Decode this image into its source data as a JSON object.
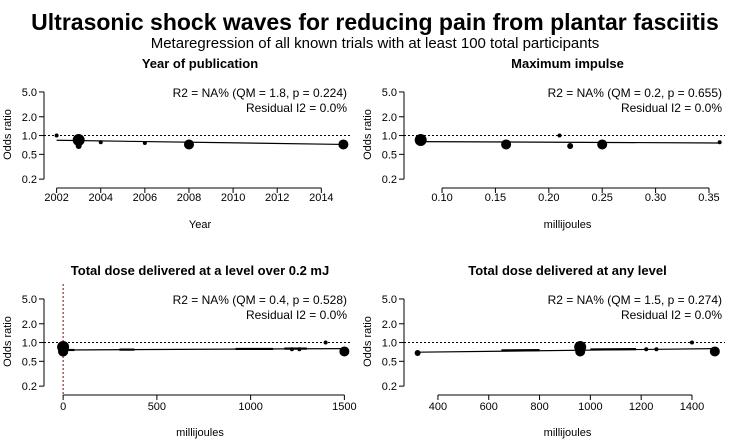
{
  "figure": {
    "title": "Ultrasonic shock waves for reducing pain from plantar fasciitis",
    "subtitle": "Metaregression of all known trials with at least 100 total participants"
  },
  "chart_data": [
    {
      "type": "scatter",
      "title": "Year of publication",
      "xlabel": "Year",
      "ylabel": "Odds ratio",
      "xlim": [
        2001.7,
        2015.3
      ],
      "xticks": [
        2002,
        2004,
        2006,
        2008,
        2010,
        2012,
        2014
      ],
      "ylim": [
        0.18,
        6.0
      ],
      "yscale": "log",
      "yticks": [
        0.2,
        0.5,
        1.0,
        2.0,
        5.0
      ],
      "reference_line": 1.0,
      "annotation_line1": "R2 = NA% (QM = 1.8, p = 0.224)",
      "annotation_line2": "Residual I2 = 0.0%",
      "points": [
        {
          "x": 2002,
          "y": 1.0,
          "size": 2
        },
        {
          "x": 2003,
          "y": 0.85,
          "size": 6
        },
        {
          "x": 2003,
          "y": 0.68,
          "size": 3
        },
        {
          "x": 2004,
          "y": 0.78,
          "size": 2
        },
        {
          "x": 2006,
          "y": 0.76,
          "size": 2
        },
        {
          "x": 2008,
          "y": 0.72,
          "size": 5
        },
        {
          "x": 2015,
          "y": 0.72,
          "size": 5
        }
      ],
      "fit": {
        "x": [
          2002,
          2015
        ],
        "y": [
          0.84,
          0.72
        ]
      },
      "fit_segments": [],
      "vline": null
    },
    {
      "type": "scatter",
      "title": "Maximum impulse",
      "xlabel": "millijoules",
      "ylabel": "Odds ratio",
      "xlim": [
        0.07,
        0.365
      ],
      "xticks": [
        0.1,
        0.15,
        0.2,
        0.25,
        0.3,
        0.35
      ],
      "ylim": [
        0.18,
        6.0
      ],
      "yscale": "log",
      "yticks": [
        0.2,
        0.5,
        1.0,
        2.0,
        5.0
      ],
      "reference_line": 1.0,
      "annotation_line1": "R2 = NA% (QM = 0.2, p = 0.655)",
      "annotation_line2": "Residual I2 = 0.0%",
      "points": [
        {
          "x": 0.08,
          "y": 0.85,
          "size": 6
        },
        {
          "x": 0.16,
          "y": 0.72,
          "size": 5
        },
        {
          "x": 0.21,
          "y": 1.0,
          "size": 2
        },
        {
          "x": 0.22,
          "y": 0.68,
          "size": 3
        },
        {
          "x": 0.25,
          "y": 0.72,
          "size": 5
        },
        {
          "x": 0.36,
          "y": 0.78,
          "size": 2
        }
      ],
      "fit": {
        "x": [
          0.08,
          0.36
        ],
        "y": [
          0.8,
          0.76
        ]
      },
      "fit_segments": [],
      "vline": null
    },
    {
      "type": "scatter",
      "title": "Total dose delivered at a level over 0.2 mJ",
      "xlabel": "millijoules",
      "ylabel": "Odds ratio",
      "xlim": [
        -70,
        1530
      ],
      "xticks": [
        0,
        500,
        1000,
        1500
      ],
      "ylim": [
        0.18,
        6.0
      ],
      "yscale": "log",
      "yticks": [
        0.2,
        0.5,
        1.0,
        2.0,
        5.0
      ],
      "reference_line": 1.0,
      "annotation_line1": "R2 = NA% (QM = 0.4, p = 0.528)",
      "annotation_line2": "Residual I2 = 0.0%",
      "points": [
        {
          "x": 0,
          "y": 0.85,
          "size": 6
        },
        {
          "x": 0,
          "y": 0.72,
          "size": 5
        },
        {
          "x": 0,
          "y": 0.72,
          "size": 5
        },
        {
          "x": 0,
          "y": 0.68,
          "size": 3
        },
        {
          "x": 1220,
          "y": 0.78,
          "size": 2
        },
        {
          "x": 1260,
          "y": 0.78,
          "size": 2
        },
        {
          "x": 1400,
          "y": 1.0,
          "size": 2
        },
        {
          "x": 1500,
          "y": 0.72,
          "size": 5
        }
      ],
      "fit": {
        "x": [
          0,
          1500
        ],
        "y": [
          0.76,
          0.8
        ]
      },
      "fit_segments": [
        {
          "x": [
            0,
            60
          ],
          "y": [
            0.76,
            0.76
          ]
        },
        {
          "x": [
            300,
            380
          ],
          "y": [
            0.77,
            0.77
          ]
        },
        {
          "x": [
            920,
            1120
          ],
          "y": [
            0.79,
            0.79
          ]
        },
        {
          "x": [
            1180,
            1300
          ],
          "y": [
            0.8,
            0.8
          ]
        }
      ],
      "vline": {
        "x": 0,
        "color": "#8b0000"
      }
    },
    {
      "type": "scatter",
      "title": "Total dose delivered at any level",
      "xlabel": "millijoules",
      "ylabel": "Odds ratio",
      "xlim": [
        290,
        1530
      ],
      "xticks": [
        400,
        600,
        800,
        1000,
        1200,
        1400
      ],
      "ylim": [
        0.18,
        6.0
      ],
      "yscale": "log",
      "yticks": [
        0.2,
        0.5,
        1.0,
        2.0,
        5.0
      ],
      "reference_line": 1.0,
      "annotation_line1": "R2 = NA% (QM = 1.5, p = 0.274)",
      "annotation_line2": "Residual I2 = 0.0%",
      "points": [
        {
          "x": 320,
          "y": 0.68,
          "size": 3
        },
        {
          "x": 960,
          "y": 0.85,
          "size": 6
        },
        {
          "x": 960,
          "y": 0.72,
          "size": 5
        },
        {
          "x": 1220,
          "y": 0.78,
          "size": 2
        },
        {
          "x": 1260,
          "y": 0.78,
          "size": 2
        },
        {
          "x": 1400,
          "y": 1.0,
          "size": 2
        },
        {
          "x": 1490,
          "y": 0.72,
          "size": 5
        }
      ],
      "fit": {
        "x": [
          320,
          1490
        ],
        "y": [
          0.7,
          0.8
        ]
      },
      "fit_segments": [
        {
          "x": [
            650,
            800
          ],
          "y": [
            0.75,
            0.755
          ]
        },
        {
          "x": [
            1000,
            1180
          ],
          "y": [
            0.775,
            0.785
          ]
        }
      ],
      "vline": null
    }
  ]
}
